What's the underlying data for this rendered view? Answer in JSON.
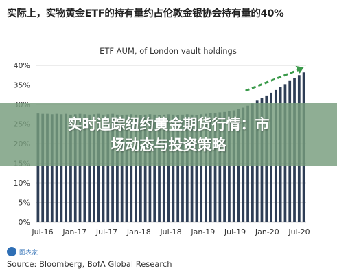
{
  "header": {
    "title": "实际上，实物黄金ETF的持有量约占伦敦金银协会持有量的40%"
  },
  "overlay": {
    "line1": "实时追踪纽约黄金期货行情：市",
    "line2": "场动态与投资策略"
  },
  "footer": {
    "source": "Source: Bloomberg, BofA Global Research",
    "logo_text": "图表家"
  },
  "colors": {
    "bar": "#2e3e56",
    "trend_arrow": "#3a9a4a",
    "grid": "#d9d9d9"
  },
  "chart_data": {
    "type": "bar",
    "title": "ETF AUM, of London vault holdings",
    "xlabel": "",
    "ylabel": "",
    "ylim": [
      0,
      0.4
    ],
    "yticks": [
      "0%",
      "5%",
      "10%",
      "15%",
      "20%",
      "25%",
      "30%",
      "35%",
      "40%"
    ],
    "xtick_labels": [
      "Jul-16",
      "Jan-17",
      "Jul-17",
      "Jan-18",
      "Jul-18",
      "Jan-19",
      "Jul-19",
      "Jan-20",
      "Jul-20"
    ],
    "grid": true,
    "legend": "none",
    "annotation": "upward trend arrow (dashed, green)",
    "values": [
      0.277,
      0.276,
      0.276,
      0.275,
      0.276,
      0.275,
      0.276,
      0.274,
      0.275,
      0.276,
      0.275,
      0.274,
      0.275,
      0.276,
      0.274,
      0.275,
      0.276,
      0.274,
      0.273,
      0.274,
      0.275,
      0.274,
      0.273,
      0.274,
      0.275,
      0.274,
      0.273,
      0.274,
      0.275,
      0.274,
      0.273,
      0.274,
      0.275,
      0.274,
      0.273,
      0.275,
      0.276,
      0.278,
      0.279,
      0.28,
      0.281,
      0.283,
      0.285,
      0.288,
      0.292,
      0.297,
      0.303,
      0.31,
      0.317,
      0.323,
      0.33,
      0.337,
      0.344,
      0.352,
      0.36,
      0.368,
      0.375,
      0.382
    ]
  }
}
